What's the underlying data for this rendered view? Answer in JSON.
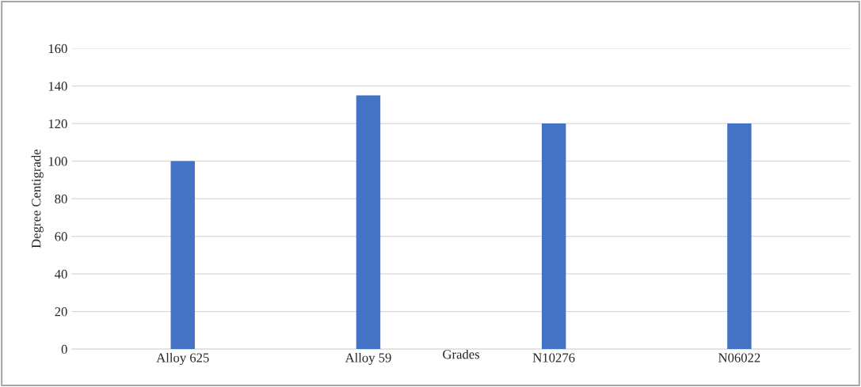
{
  "chart_data": {
    "type": "bar",
    "xlabel": "Grades",
    "ylabel": "Degree Centigrade",
    "categories": [
      "Alloy 625",
      "Alloy 59",
      "N10276",
      "N06022"
    ],
    "values": [
      100,
      135,
      120,
      120
    ],
    "color": "#4472c4",
    "ylim": [
      0,
      160
    ],
    "yticks": [
      0,
      20,
      40,
      60,
      80,
      100,
      120,
      140,
      160
    ],
    "grid": "y",
    "legend": false
  }
}
